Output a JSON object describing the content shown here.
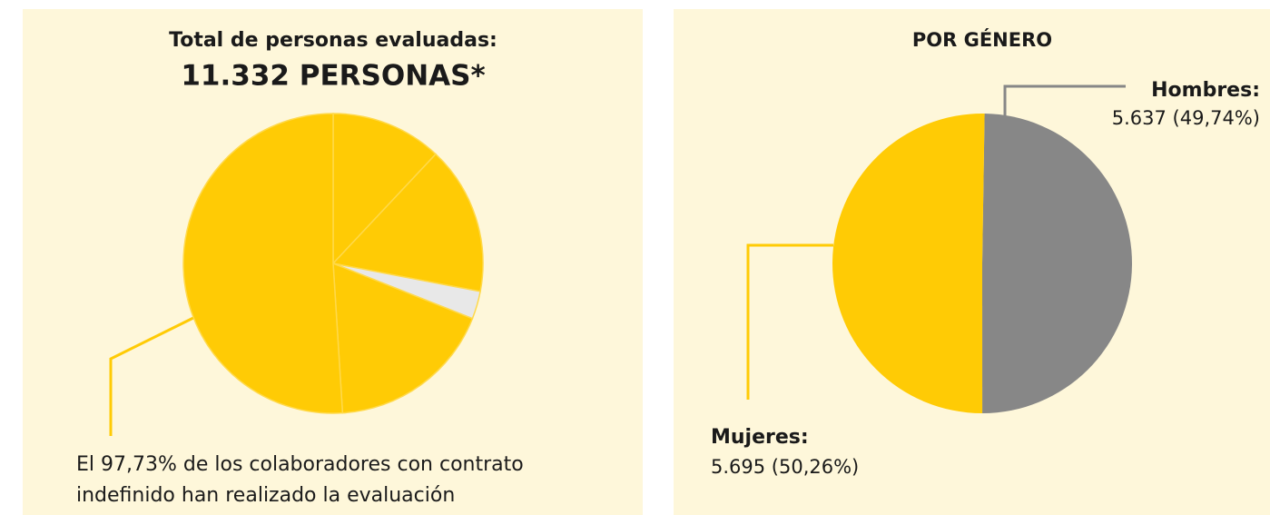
{
  "chart_data": [
    {
      "type": "pie",
      "title": "Total de personas evaluadas:",
      "subtitle": "11.332 PERSONAS*",
      "values": [
        12,
        16,
        3,
        18,
        51
      ],
      "colors": [
        "#FFCB05",
        "#FFCB05",
        "#E8E8E8",
        "#FFCB05",
        "#FFCB05"
      ],
      "annotation": [
        "El 97,73% de los colaboradores con contrato",
        "indefinido han realizado la evaluación"
      ]
    },
    {
      "type": "pie",
      "title": "POR GÉNERO",
      "categories": [
        "Hombres:",
        "Mujeres:"
      ],
      "values": [
        5637,
        5695
      ],
      "value_labels": [
        "5.637 (49,74%)",
        "5.695 (50,26%)"
      ],
      "colors": [
        "#878787",
        "#FFCB05"
      ]
    }
  ]
}
